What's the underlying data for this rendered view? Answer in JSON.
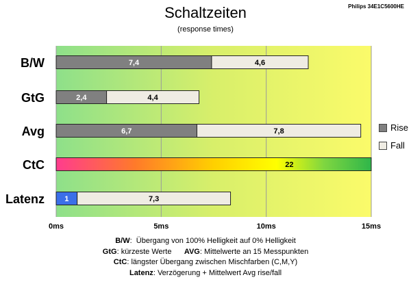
{
  "header": {
    "title": "Schaltzeiten",
    "subtitle": "(response times)",
    "model": "Philips 34E1C5600HE"
  },
  "chart_data": {
    "type": "bar",
    "orientation": "horizontal",
    "stacked": true,
    "categories": [
      "B/W",
      "GtG",
      "Avg",
      "CtC",
      "Latenz"
    ],
    "series": [
      {
        "name": "Rise",
        "color": "#808080",
        "values": [
          7.4,
          2.4,
          6.7,
          null,
          1
        ]
      },
      {
        "name": "Fall",
        "color": "#efece3",
        "values": [
          4.6,
          4.4,
          7.8,
          null,
          7.3
        ]
      }
    ],
    "single_values": {
      "CtC": 22
    },
    "data_labels": [
      [
        "7,4",
        "4,6"
      ],
      [
        "2,4",
        "4,4"
      ],
      [
        "6,7",
        "7,8"
      ],
      [
        "22"
      ],
      [
        "1",
        "7,3"
      ]
    ],
    "xlim": [
      0,
      15
    ],
    "xticks": [
      "0ms",
      "5ms",
      "10ms",
      "15ms"
    ],
    "xtick_values": [
      0,
      5,
      10,
      15
    ],
    "grid": true,
    "legend": "right",
    "latency_rise_color": "#3b6fe8",
    "background_gradient": [
      "#8ee08a",
      "#d8ef6a",
      "#fbfb6a"
    ],
    "ctc_gradient": [
      "#ff3c8e",
      "#ff7a2a",
      "#ffd000",
      "#ffff00",
      "#7fd640",
      "#2fb64a"
    ]
  },
  "notes": [
    {
      "label": "B/W",
      "text": "Übergang von 100% Helligkeit auf 0% Helligkeit"
    },
    {
      "label": "GtG",
      "text": "kürzeste  Werte"
    },
    {
      "label": "AVG",
      "text": "Mittelwerte  an 15 Messpunkten"
    },
    {
      "label": "CtC",
      "text": "längster Übergang  zwischen Mischfarben  (C,M,Y)"
    },
    {
      "label": "Latenz",
      "text": "Verzögerung  + Mittelwert  Avg rise/fall"
    }
  ]
}
